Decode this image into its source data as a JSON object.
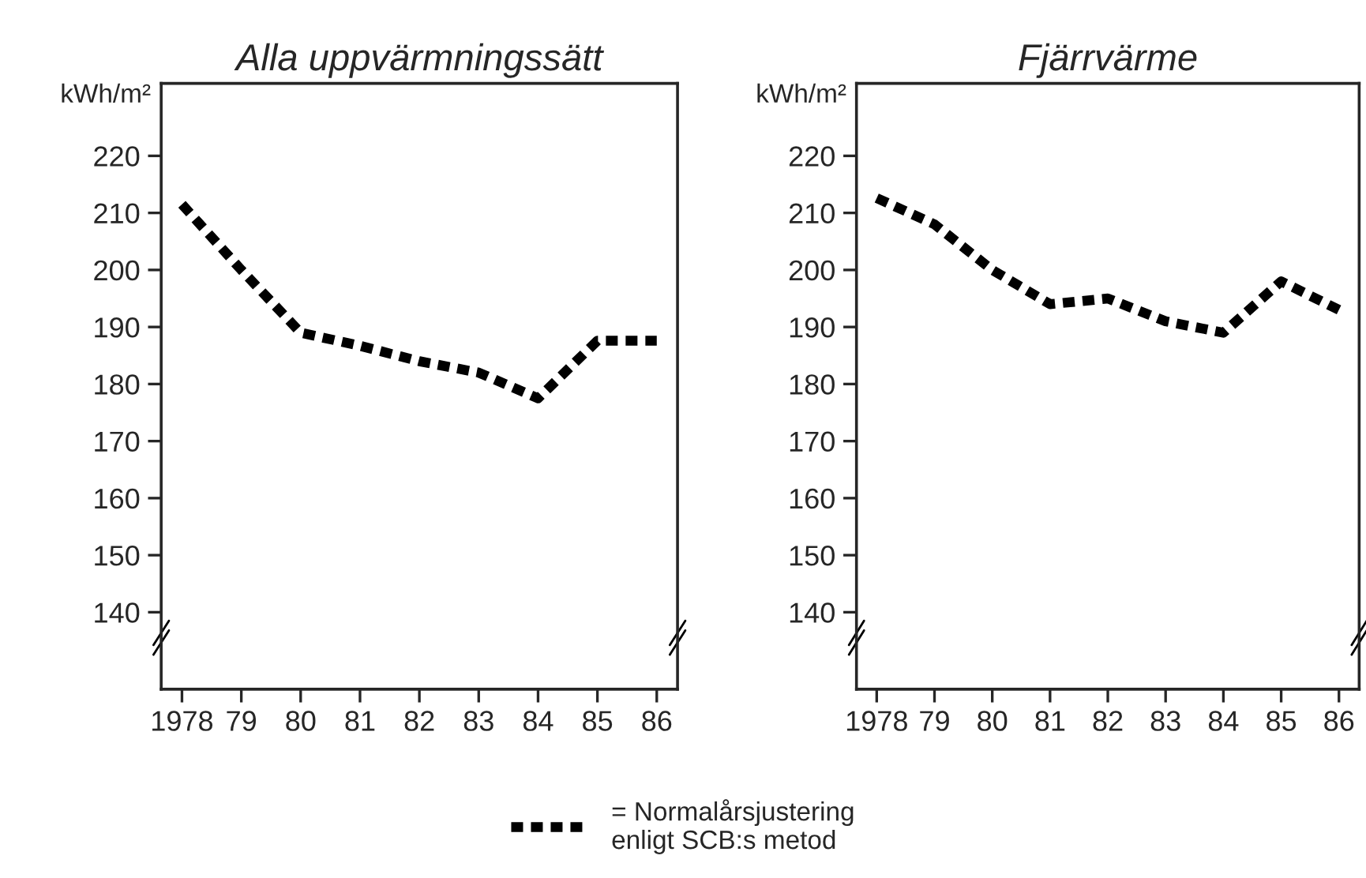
{
  "chart_data": [
    {
      "type": "line",
      "title": "Alla uppvärmningssätt",
      "ylabel": "kWh/m²",
      "categories": [
        "1978",
        "79",
        "80",
        "81",
        "82",
        "83",
        "84",
        "85",
        "86"
      ],
      "series": [
        {
          "name": "= Normalårsjustering\nenligt SCB:s metod",
          "color": "#000000",
          "values": [
            211.5,
            200,
            189,
            186.7,
            184,
            182,
            177.5,
            187.6,
            187.6
          ]
        }
      ],
      "ylim": [
        126.5,
        232.7
      ],
      "yticks": [
        140,
        150,
        160,
        170,
        180,
        190,
        200,
        210,
        220
      ],
      "grid": false,
      "legend": "bottom",
      "line_style": "dashed",
      "marker": "none"
    },
    {
      "type": "line",
      "title": "Fjärrvärme",
      "ylabel": "kWh/m²",
      "categories": [
        "1978",
        "79",
        "80",
        "81",
        "82",
        "83",
        "84",
        "85",
        "86"
      ],
      "series": [
        {
          "color": "#000000",
          "values": [
            212.6,
            208,
            200,
            194,
            195,
            191,
            189,
            198,
            193
          ]
        }
      ],
      "ylim": [
        126.5,
        232.7
      ],
      "yticks": [
        140,
        150,
        160,
        170,
        180,
        190,
        200,
        210,
        220
      ],
      "grid": false,
      "line_style": "dashed",
      "marker": "none"
    }
  ]
}
